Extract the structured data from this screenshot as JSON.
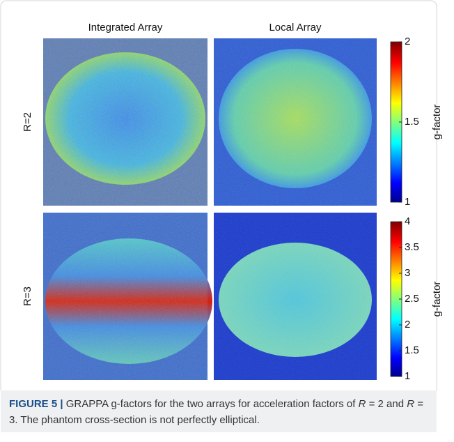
{
  "figure": {
    "column_titles": [
      "Integrated Array",
      "Local Array"
    ],
    "row_labels": [
      "R=2",
      "R=3"
    ],
    "colorbars": [
      {
        "label": "g-factor",
        "lim": [
          1,
          2
        ],
        "ticks": [
          1,
          1.5,
          2
        ]
      },
      {
        "label": "g-factor",
        "lim": [
          1,
          4
        ],
        "ticks": [
          1,
          1.5,
          2,
          2.5,
          3,
          3.5,
          4
        ]
      }
    ]
  },
  "caption": {
    "label": "FIGURE 5 |",
    "parts": [
      "GRAPPA g-factors for the two arrays for acceleration factors of ",
      "R",
      " = 2 and ",
      "R",
      " = 3. The phantom cross-section is not perfectly elliptical."
    ]
  }
}
